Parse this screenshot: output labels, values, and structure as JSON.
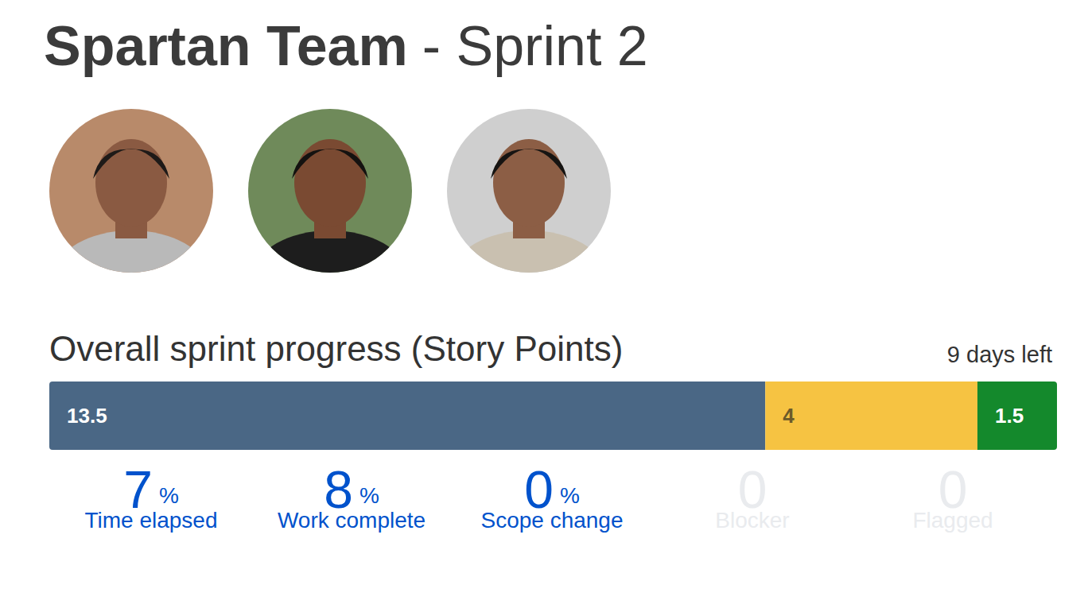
{
  "header": {
    "team": "Spartan Team",
    "sprint": "- Sprint 2"
  },
  "chart_data": {
    "type": "bar",
    "orientation": "horizontal",
    "stacked": true,
    "data_labels": true,
    "tick_labels": false,
    "title": "Overall sprint progress (Story Points)",
    "subtitle": "9 days left",
    "categories": [
      null
    ],
    "xlim": [
      0,
      19
    ],
    "series": [
      {
        "color": "#4a6785",
        "values": [
          13.5
        ]
      },
      {
        "color": "#f6c342",
        "values": [
          4
        ]
      },
      {
        "color": "#14892c",
        "values": [
          1.5
        ]
      }
    ]
  },
  "stats": [
    {
      "value": 7,
      "unit": "%",
      "label": "Time elapsed",
      "color": "#0052cc"
    },
    {
      "value": 8,
      "unit": "%",
      "label": "Work complete",
      "color": "#0052cc"
    },
    {
      "value": 0,
      "unit": "%",
      "label": "Scope change",
      "color": "#0052cc"
    },
    {
      "value": 0,
      "label": "Blocker",
      "color": "#e9ebee"
    },
    {
      "value": 0,
      "label": "Flagged",
      "color": "#e9ebee"
    }
  ]
}
